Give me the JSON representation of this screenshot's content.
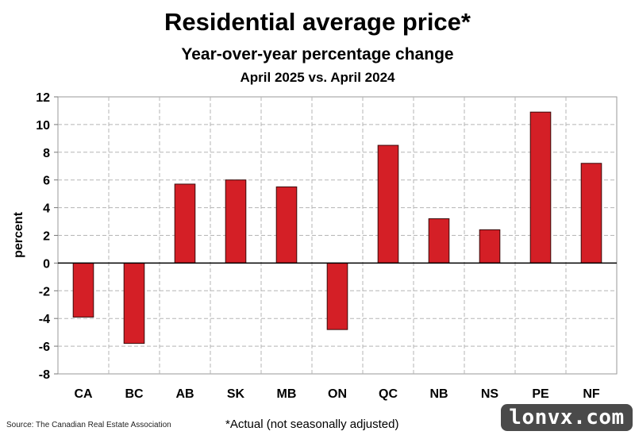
{
  "chart_data": {
    "type": "bar",
    "title": "Residential average price*",
    "subtitle": "Year-over-year percentage change",
    "period": "April 2025 vs. April 2024",
    "ylabel": "percent",
    "xlabel": "",
    "categories": [
      "CA",
      "BC",
      "AB",
      "SK",
      "MB",
      "ON",
      "QC",
      "NB",
      "NS",
      "PE",
      "NF"
    ],
    "values": [
      -3.9,
      -5.8,
      5.7,
      6.0,
      5.5,
      -4.8,
      8.5,
      3.2,
      2.4,
      10.9,
      7.2
    ],
    "ylim": [
      -8,
      12
    ],
    "yticks": [
      "12",
      "10",
      "8",
      "6",
      "4",
      "2",
      "0",
      "-2",
      "-4",
      "-6",
      "-8"
    ],
    "ytick_values": [
      12,
      10,
      8,
      6,
      4,
      2,
      0,
      -2,
      -4,
      -6,
      -8
    ],
    "grid": true,
    "bar_color": "#d41f26",
    "bar_edge_color": "#3a0a0a"
  },
  "footer": {
    "source": "Source: The Canadian Real Estate Association",
    "note": "*Actual (not seasonally adjusted)"
  },
  "watermark": "lonvx.com"
}
